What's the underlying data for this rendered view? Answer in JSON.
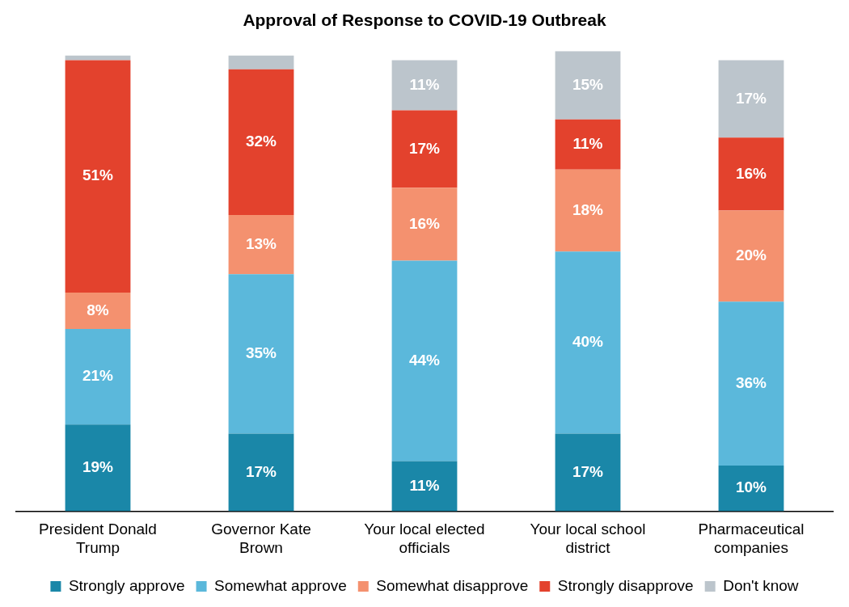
{
  "chart_data": {
    "type": "bar",
    "title": "Approval of Response to COVID-19 Outbreak",
    "categories": [
      "President Donald Trump",
      "Governor Kate Brown",
      "Your local elected officials",
      "Your local school district",
      "Pharmaceutical companies"
    ],
    "stacked": true,
    "data_labels": true,
    "grid": false,
    "legend": "bottom",
    "tick_labels": "x",
    "series": [
      {
        "name": "Strongly approve",
        "color": "#1a87a8",
        "values": [
          19,
          17,
          11,
          17,
          10
        ],
        "value_labels": [
          "19%",
          "17%",
          "11%",
          "17%",
          "10%"
        ]
      },
      {
        "name": "Somewhat approve",
        "color": "#5bb8db",
        "values": [
          21,
          35,
          44,
          40,
          36
        ],
        "value_labels": [
          "21%",
          "35%",
          "44%",
          "40%",
          "36%"
        ]
      },
      {
        "name": "Somewhat disapprove",
        "color": "#f4916f",
        "values": [
          8,
          13,
          16,
          18,
          20
        ],
        "value_labels": [
          "8%",
          "13%",
          "16%",
          "18%",
          "20%"
        ]
      },
      {
        "name": "Strongly disapprove",
        "color": "#e3422d",
        "values": [
          51,
          32,
          17,
          11,
          16
        ],
        "value_labels": [
          "51%",
          "32%",
          "17%",
          "11%",
          "16%"
        ]
      },
      {
        "name": "Don't know",
        "color": "#bcc5cc",
        "values": [
          1,
          3,
          11,
          15,
          17
        ],
        "value_labels": [
          null,
          null,
          "11%",
          "15%",
          "17%"
        ]
      }
    ]
  }
}
